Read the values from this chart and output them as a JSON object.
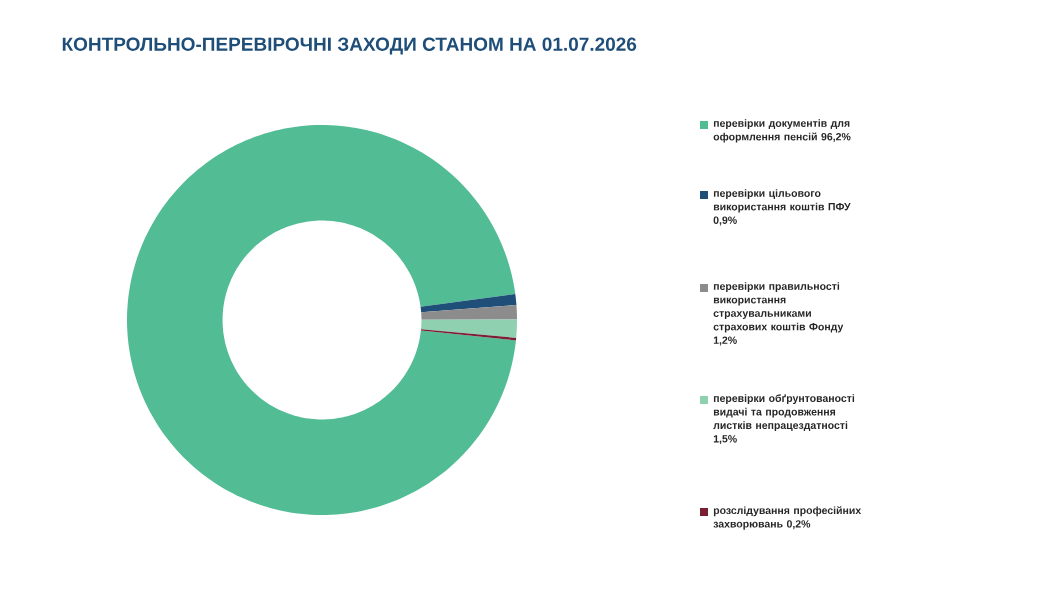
{
  "chart_data": {
    "type": "donut",
    "title": "КОНТРОЛЬНО-ПЕРЕВІРОЧНІ ЗАХОДИ СТАНОМ НА 01.07.2026",
    "categories": [
      "перевірки документів для оформлення пенсій 96,2%",
      "перевірки цільового використання коштів ПФУ 0,9%",
      "перевірки правильності використання страхувальниками страхових коштів Фонду 1,2%",
      "перевірки обґрунтованості видачі та продовження листків непрацездатності 1,5%",
      "розслідування професійних захворювань 0,2%"
    ],
    "values": [
      96.2,
      0.9,
      1.2,
      1.5,
      0.2
    ],
    "colors": [
      "#52bc94",
      "#1f4e79",
      "#8c8c8c",
      "#8fd0b0",
      "#7a1f35"
    ],
    "legend": "right"
  }
}
